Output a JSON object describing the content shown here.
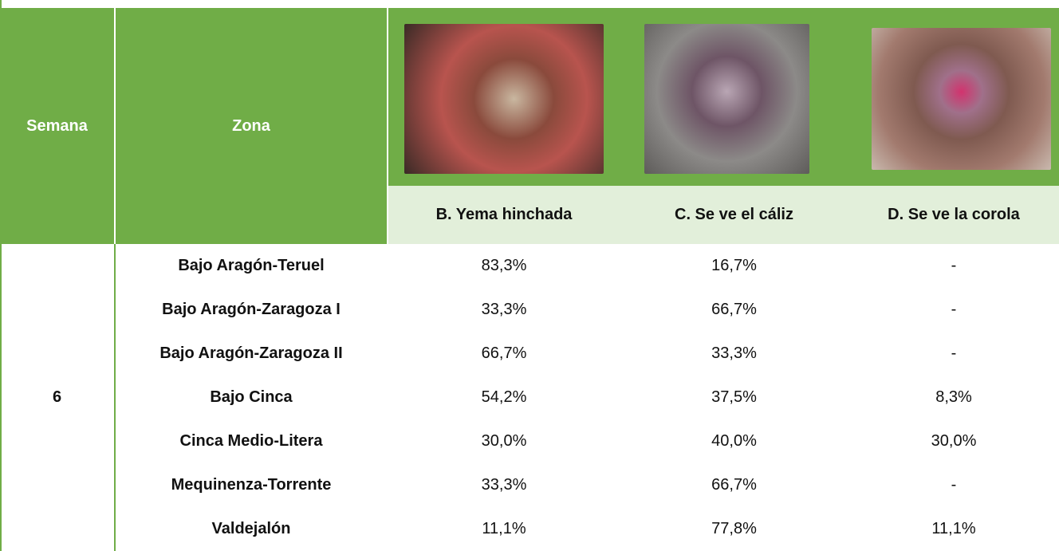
{
  "header": {
    "semana": "Semana",
    "zona": "Zona",
    "stages": [
      "B. Yema hinchada",
      "C. Se ve el cáliz",
      "D. Se ve la corola"
    ]
  },
  "semana_value": "6",
  "rows": [
    {
      "zona": "Bajo Aragón-Teruel",
      "values": [
        "83,3%",
        "16,7%",
        "-"
      ]
    },
    {
      "zona": "Bajo Aragón-Zaragoza I",
      "values": [
        "33,3%",
        "66,7%",
        "-"
      ]
    },
    {
      "zona": "Bajo Aragón-Zaragoza II",
      "values": [
        "66,7%",
        "33,3%",
        "-"
      ]
    },
    {
      "zona": "Bajo Cinca",
      "values": [
        "54,2%",
        "37,5%",
        "8,3%"
      ]
    },
    {
      "zona": "Cinca Medio-Litera",
      "values": [
        "30,0%",
        "40,0%",
        "30,0%"
      ]
    },
    {
      "zona": "Mequinenza-Torrente",
      "values": [
        "33,3%",
        "66,7%",
        "-"
      ]
    },
    {
      "zona": "Valdejalón",
      "values": [
        "11,1%",
        "77,8%",
        "11,1%"
      ]
    }
  ]
}
